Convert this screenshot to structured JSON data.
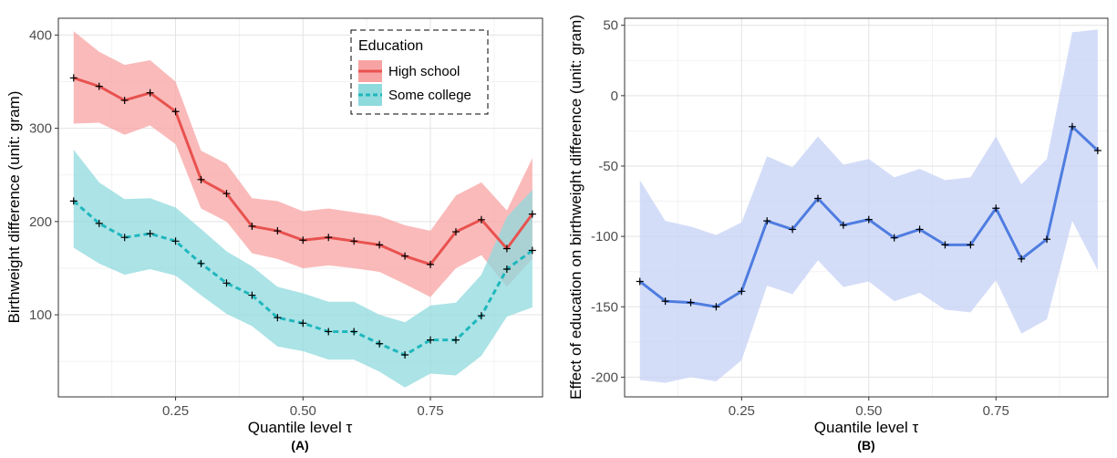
{
  "chart_data": [
    {
      "type": "line",
      "panel_label": "(A)",
      "xlabel": "Quantile level τ",
      "ylabel": "Birthweight difference (unit: gram)",
      "xlim": [
        0.02,
        0.97
      ],
      "ylim": [
        12,
        418
      ],
      "x_ticks": [
        0.25,
        0.5,
        0.75
      ],
      "x_tick_labels": [
        "0.25",
        "0.50",
        "0.75"
      ],
      "y_ticks": [
        100,
        200,
        300,
        400
      ],
      "y_tick_labels": [
        "100",
        "200",
        "300",
        "400"
      ],
      "grid": true,
      "legend": {
        "title": "Education",
        "position": "top-right"
      },
      "x": [
        0.05,
        0.1,
        0.15,
        0.2,
        0.25,
        0.3,
        0.35,
        0.4,
        0.45,
        0.5,
        0.55,
        0.6,
        0.65,
        0.7,
        0.75,
        0.8,
        0.85,
        0.9,
        0.95
      ],
      "series": [
        {
          "name": "High school",
          "color": "#e8524f",
          "band_color": "#f8a3a3",
          "dash": "solid",
          "values": [
            354,
            345,
            330,
            338,
            318,
            245,
            230,
            195,
            190,
            180,
            183,
            179,
            175,
            163,
            154,
            189,
            202,
            171,
            208
          ],
          "lower": [
            305,
            306,
            293,
            303,
            283,
            214,
            200,
            166,
            160,
            150,
            153,
            150,
            146,
            133,
            119,
            150,
            164,
            130,
            160
          ],
          "upper": [
            404,
            382,
            368,
            373,
            350,
            276,
            262,
            225,
            222,
            211,
            214,
            210,
            206,
            196,
            190,
            228,
            242,
            212,
            268
          ]
        },
        {
          "name": "Some college",
          "color": "#1fb7bd",
          "band_color": "#8fdadd",
          "dash": "dashed",
          "values": [
            222,
            198,
            183,
            187,
            179,
            155,
            134,
            121,
            97,
            91,
            82,
            82,
            69,
            57,
            73,
            73,
            99,
            149,
            169
          ],
          "lower": [
            172,
            155,
            143,
            149,
            142,
            121,
            101,
            88,
            66,
            61,
            52,
            52,
            39,
            22,
            37,
            35,
            56,
            98,
            108
          ],
          "upper": [
            277,
            242,
            224,
            225,
            215,
            192,
            168,
            152,
            130,
            123,
            114,
            114,
            100,
            92,
            110,
            113,
            143,
            205,
            234
          ]
        }
      ]
    },
    {
      "type": "line",
      "panel_label": "(B)",
      "xlabel": "Quantile level τ",
      "ylabel": "Effect of education on birthweight difference (unit: gram)",
      "xlim": [
        0.02,
        0.97
      ],
      "ylim": [
        -214,
        55
      ],
      "x_ticks": [
        0.25,
        0.5,
        0.75
      ],
      "x_tick_labels": [
        "0.25",
        "0.50",
        "0.75"
      ],
      "y_ticks": [
        -200,
        -150,
        -100,
        -50,
        0,
        50
      ],
      "y_tick_labels": [
        "-200",
        "-150",
        "-100",
        "-50",
        "0",
        "50"
      ],
      "grid": true,
      "x": [
        0.05,
        0.1,
        0.15,
        0.2,
        0.25,
        0.3,
        0.35,
        0.4,
        0.45,
        0.5,
        0.55,
        0.6,
        0.65,
        0.7,
        0.75,
        0.8,
        0.85,
        0.9,
        0.95
      ],
      "series": [
        {
          "color": "#4f7de0",
          "band_color": "#c5d2f6",
          "dash": "solid",
          "values": [
            -132,
            -146,
            -147,
            -150,
            -139,
            -89,
            -95,
            -73,
            -92,
            -88,
            -101,
            -95,
            -106,
            -106,
            -80,
            -116,
            -102,
            -22,
            -39
          ],
          "lower": [
            -202,
            -204,
            -200,
            -203,
            -188,
            -135,
            -141,
            -117,
            -136,
            -132,
            -146,
            -140,
            -152,
            -154,
            -131,
            -169,
            -159,
            -89,
            -124
          ],
          "upper": [
            -60,
            -89,
            -93,
            -99,
            -90,
            -43,
            -51,
            -29,
            -49,
            -45,
            -58,
            -52,
            -60,
            -58,
            -29,
            -63,
            -45,
            45,
            47
          ]
        }
      ]
    }
  ]
}
